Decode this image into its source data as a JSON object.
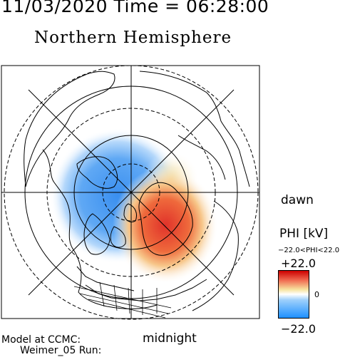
{
  "header": {
    "timestamp": "11/03/2020 Time = 06:28:00",
    "hemisphere": "Northern Hemisphere"
  },
  "map": {
    "labels": {
      "dawn": "dawn",
      "midnight": "midnight"
    },
    "potential_extrema_kv": {
      "max": 22.0,
      "min": -22.0
    },
    "cells": [
      {
        "name": "negative-cell",
        "sign": "negative",
        "color": "#3a8ff0"
      },
      {
        "name": "positive-cell",
        "sign": "positive",
        "color": "#e0322a"
      }
    ]
  },
  "colorbar": {
    "title": "PHI [kV]",
    "range_text": "−22.0<PHI<22.0",
    "max_label": "+22.0",
    "zero_label": "0",
    "min_label": "−22.0",
    "colors": {
      "max": "#cc0000",
      "mid": "#ffffff",
      "min": "#1e90ff"
    }
  },
  "footer": {
    "model_line": "Model at CCMC:",
    "run_line": "Weimer_05 Run:"
  }
}
